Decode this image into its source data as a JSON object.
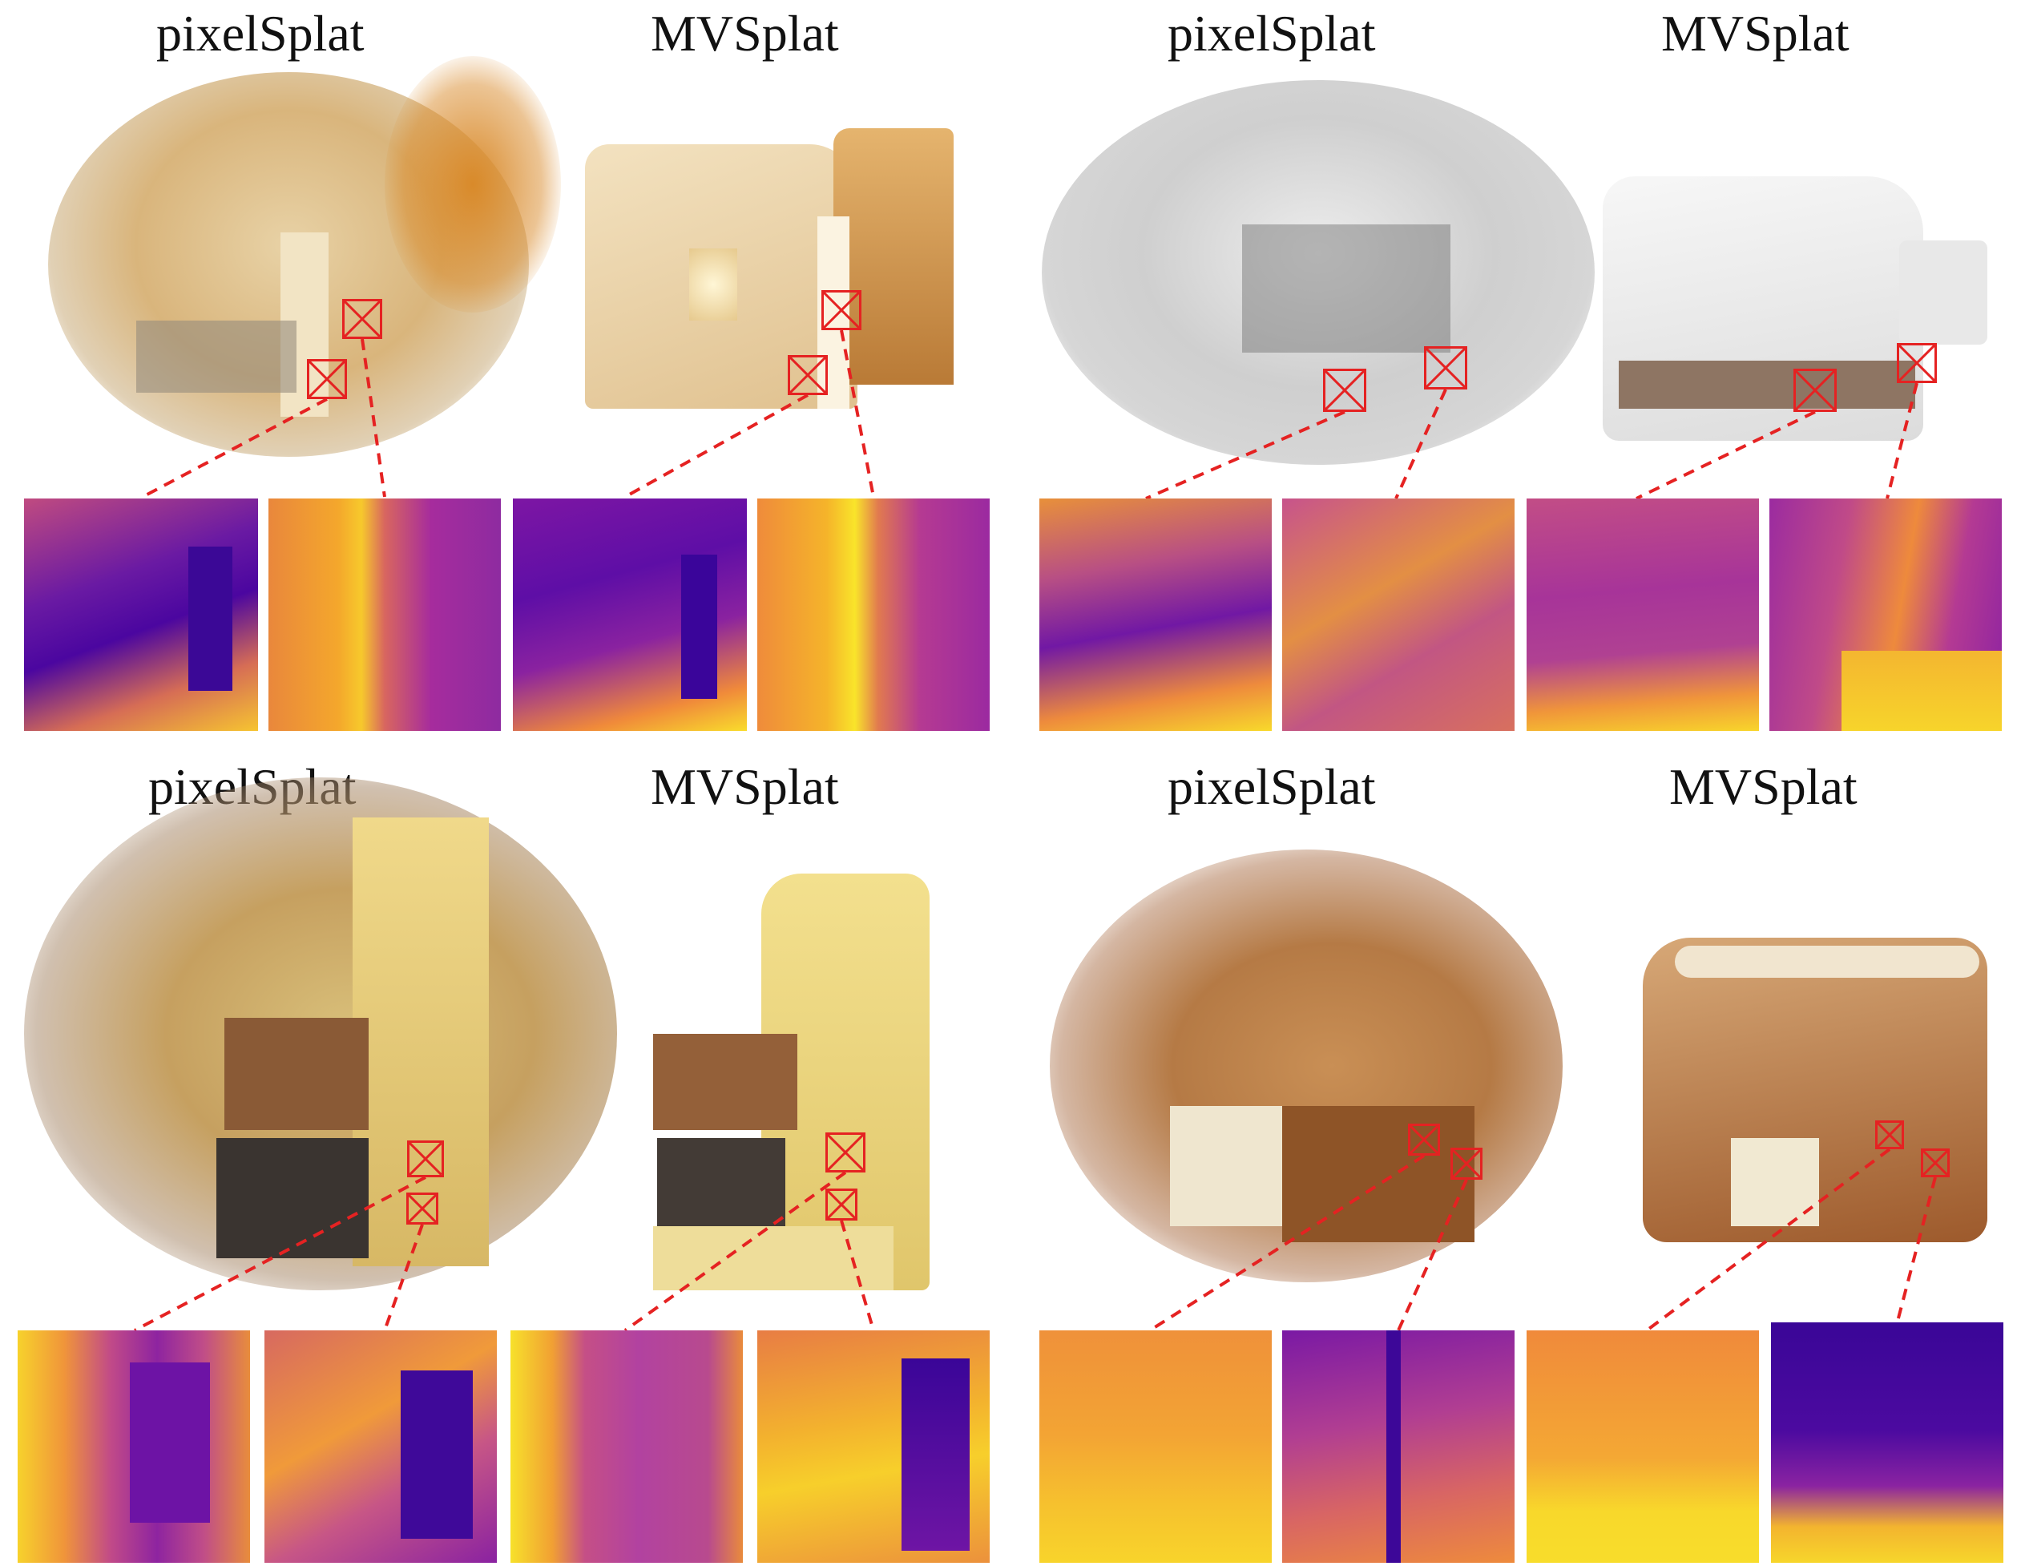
{
  "panels": [
    {
      "left_label": "pixelSplat",
      "right_label": "MVSplat"
    },
    {
      "left_label": "pixelSplat",
      "right_label": "MVSplat"
    },
    {
      "left_label": "pixelSplat",
      "right_label": "MVSplat"
    },
    {
      "left_label": "pixelSplat",
      "right_label": "MVSplat"
    }
  ],
  "colors": {
    "highlight": "#e52222",
    "depth_near": "#f7e225",
    "depth_mid": "#cc4778",
    "depth_far": "#3a049a"
  }
}
